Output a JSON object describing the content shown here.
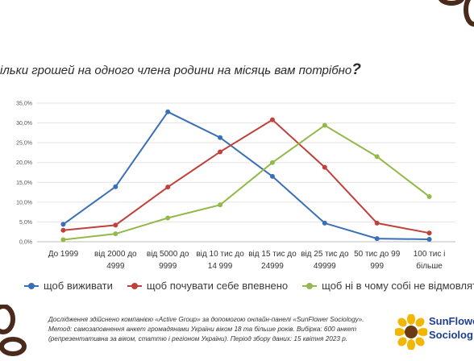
{
  "title": {
    "text": "ільки грошей на одного члена родини на місяць вам потрібно",
    "mark": "?"
  },
  "chart_data": {
    "type": "line",
    "categories": [
      [
        "До 1999"
      ],
      [
        "від 2000 до",
        "4999"
      ],
      [
        "від 5000 до",
        "9999"
      ],
      [
        "від 10 тис до",
        "14 999"
      ],
      [
        "від 15 тис до",
        "24999"
      ],
      [
        "від 25 тис до",
        "49999"
      ],
      [
        "50 тис до 99",
        "999"
      ],
      [
        "100 тис і",
        "більше"
      ]
    ],
    "ylim": [
      0,
      35
    ],
    "ytick_labels": [
      "0,0%",
      "5,0%",
      "10,0%",
      "15,0%",
      "20,0%",
      "25,0%",
      "30,0%",
      "35,0%"
    ],
    "grid": true,
    "legend_position": "bottom",
    "series": [
      {
        "name": "щоб виживати",
        "color": "#3a6fb5",
        "values": [
          4.4,
          13.9,
          32.8,
          26.3,
          16.5,
          4.7,
          0.8,
          0.6
        ]
      },
      {
        "name": "щоб почувати себе впевнено",
        "color": "#c0403a",
        "values": [
          2.9,
          4.2,
          13.8,
          22.7,
          30.8,
          18.8,
          4.7,
          2.2
        ]
      },
      {
        "name": "щоб ні в чому собі не відмовляти",
        "color": "#93b94a",
        "values": [
          0.5,
          2.0,
          6.0,
          9.3,
          20.0,
          29.4,
          21.5,
          11.4
        ]
      }
    ]
  },
  "footer": {
    "note": "Дослідження здійснено компанією «Active Group» за допомогою онлайн-панелі «SunFlower Sociology». Метод: самозаповнення анкет громадянами України віком 18 та більше років. Вибірка: 600 анкет (репрезентативна за віком, статтю і регіоном України). Період збору даних: 15 квітня 2023 р.",
    "brand_line1": "SunFlowe",
    "brand_line2": "Sociolog"
  }
}
